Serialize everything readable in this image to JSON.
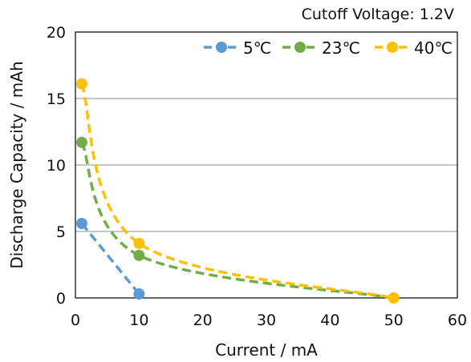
{
  "chart_data": {
    "type": "scatter",
    "annotation": "Cutoff Voltage: 1.2V",
    "xlabel": "Current / mA",
    "ylabel": "Discharge Capacity / mAh",
    "xlim": [
      0,
      60
    ],
    "ylim": [
      0,
      20
    ],
    "x_ticks": [
      "0",
      "10",
      "20",
      "30",
      "40",
      "50",
      "60"
    ],
    "y_ticks": [
      "0",
      "5",
      "10",
      "15",
      "20"
    ],
    "grid": "horizontal",
    "legend_position": "top-right",
    "series": [
      {
        "name": "5℃",
        "color": "#5B9BD5",
        "points": [
          [
            1,
            5.6
          ],
          [
            10,
            0.3
          ]
        ]
      },
      {
        "name": "23℃",
        "color": "#70AD47",
        "points": [
          [
            1,
            11.7
          ],
          [
            10,
            3.2
          ],
          [
            50,
            0
          ]
        ]
      },
      {
        "name": "40℃",
        "color": "#FFC000",
        "points": [
          [
            1,
            16.1
          ],
          [
            10,
            4.1
          ],
          [
            50,
            0
          ]
        ]
      }
    ]
  }
}
